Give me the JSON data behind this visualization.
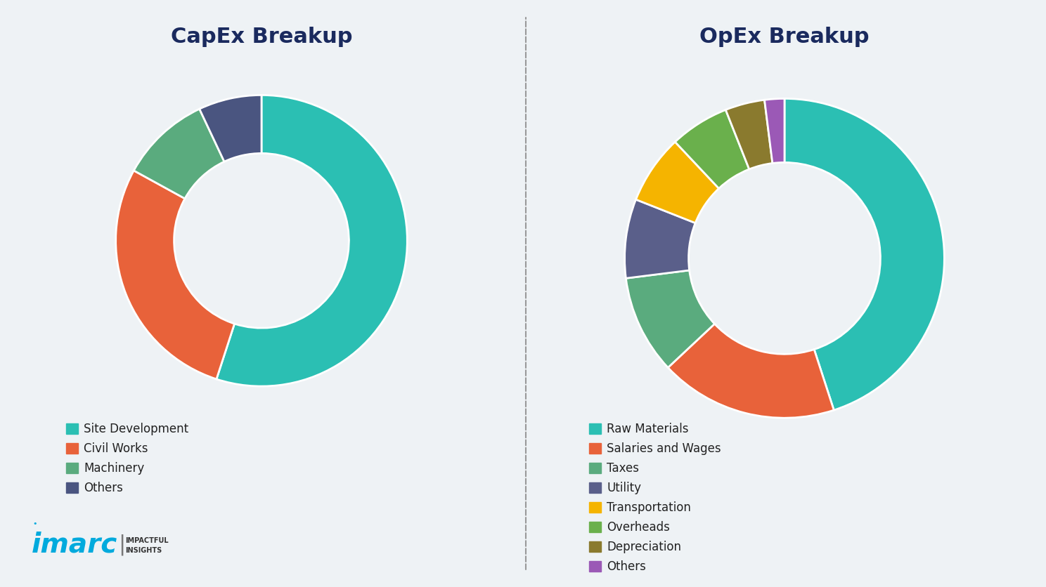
{
  "bg_color": "#eef2f5",
  "title_color": "#1a2a5e",
  "capex_title": "CapEx Breakup",
  "opex_title": "OpEx Breakup",
  "capex_slices": [
    {
      "label": "Site Development",
      "value": 55,
      "color": "#2bbfb3"
    },
    {
      "label": "Civil Works",
      "value": 28,
      "color": "#e8623a"
    },
    {
      "label": "Machinery",
      "value": 10,
      "color": "#5aab7e"
    },
    {
      "label": "Others",
      "value": 7,
      "color": "#4a5580"
    }
  ],
  "opex_slices": [
    {
      "label": "Raw Materials",
      "value": 45,
      "color": "#2bbfb3"
    },
    {
      "label": "Salaries and Wages",
      "value": 18,
      "color": "#e8623a"
    },
    {
      "label": "Taxes",
      "value": 10,
      "color": "#5aab7e"
    },
    {
      "label": "Utility",
      "value": 8,
      "color": "#5a5f8a"
    },
    {
      "label": "Transportation",
      "value": 7,
      "color": "#f5b400"
    },
    {
      "label": "Overheads",
      "value": 6,
      "color": "#6ab04c"
    },
    {
      "label": "Depreciation",
      "value": 4,
      "color": "#8a7a2e"
    },
    {
      "label": "Others",
      "value": 2,
      "color": "#9b59b6"
    }
  ],
  "capex_startangle": 90,
  "opex_startangle": 90,
  "donut_width": 0.4,
  "legend_fontsize": 12,
  "title_fontsize": 22,
  "imarc_color": "#00aadd",
  "imarc_insights_color": "#333333",
  "divider_color": "#999999"
}
